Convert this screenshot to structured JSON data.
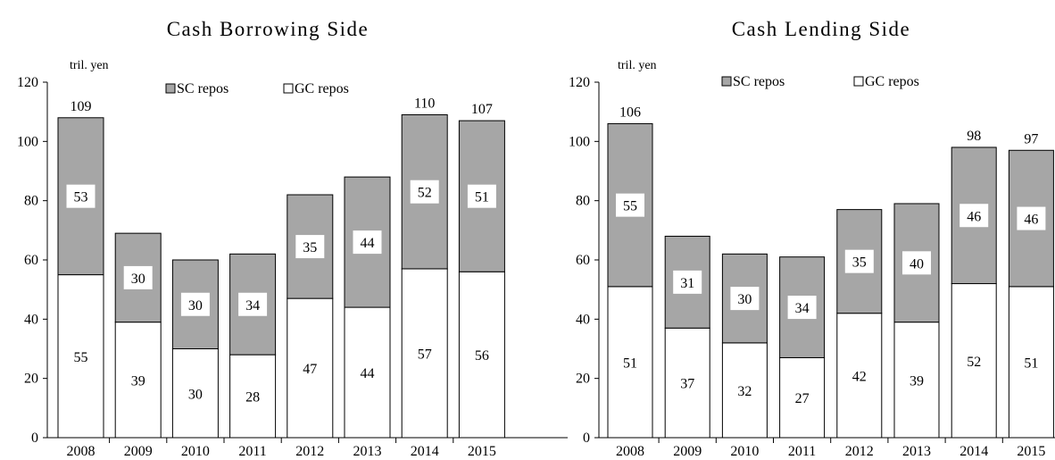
{
  "colors": {
    "sc": "#a6a6a6",
    "gc": "#ffffff",
    "outline": "#000000"
  },
  "chart_data": [
    {
      "type": "bar",
      "stacked": true,
      "title": "Cash Borrowing Side",
      "unit_label": "tril. yen",
      "categories": [
        "2008",
        "2009",
        "2010",
        "2011",
        "2012",
        "2013",
        "2014",
        "2015"
      ],
      "ylim": [
        0,
        120
      ],
      "yticks": [
        0,
        20,
        40,
        60,
        80,
        100,
        120
      ],
      "legend": [
        "SC repos",
        "GC repos"
      ],
      "series": [
        {
          "name": "GC repos",
          "values": [
            55,
            39,
            30,
            28,
            47,
            44,
            57,
            56
          ]
        },
        {
          "name": "SC repos",
          "values": [
            53,
            30,
            30,
            34,
            35,
            44,
            52,
            51
          ]
        }
      ],
      "totals": [
        109,
        null,
        null,
        null,
        null,
        null,
        110,
        107
      ]
    },
    {
      "type": "bar",
      "stacked": true,
      "title": "Cash Lending Side",
      "unit_label": "tril. yen",
      "categories": [
        "2008",
        "2009",
        "2010",
        "2011",
        "2012",
        "2013",
        "2014",
        "2015"
      ],
      "ylim": [
        0,
        120
      ],
      "yticks": [
        0,
        20,
        40,
        60,
        80,
        100,
        120
      ],
      "legend": [
        "SC repos",
        "GC repos"
      ],
      "series": [
        {
          "name": "GC repos",
          "values": [
            51,
            37,
            32,
            27,
            42,
            39,
            52,
            51
          ]
        },
        {
          "name": "SC repos",
          "values": [
            55,
            31,
            30,
            34,
            35,
            40,
            46,
            46
          ]
        }
      ],
      "totals": [
        106,
        null,
        null,
        null,
        null,
        null,
        98,
        97
      ]
    }
  ]
}
